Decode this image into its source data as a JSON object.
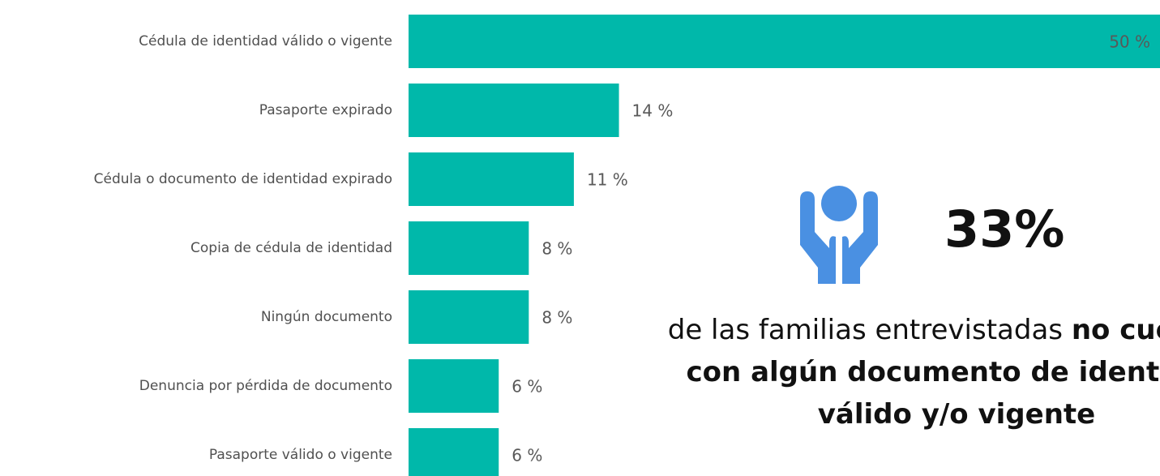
{
  "chart_data": {
    "type": "bar",
    "orientation": "horizontal",
    "categories": [
      "Cédula de identidad válido o vigente",
      "Pasaporte expirado",
      "Cédula o documento de identidad expirado",
      "Copia de cédula de identidad",
      "Ningún documento",
      "Denuncia por pérdida de documento",
      "Pasaporte válido o vigente"
    ],
    "values": [
      50,
      14,
      11,
      8,
      8,
      6,
      6
    ],
    "value_labels": [
      "50 %",
      "14 %",
      "11 %",
      "8 %",
      "8 %",
      "6 %",
      "6 %"
    ],
    "color": "#00b8aa",
    "xlim": [
      0,
      50
    ],
    "annotation": {
      "figure": "33%",
      "text_regular": "de las familias entrevistadas",
      "text_bold_1": "no cuentan",
      "text_bold_2": "con algún documento de identidad",
      "text_bold_3": "válido y/o vigente"
    }
  }
}
